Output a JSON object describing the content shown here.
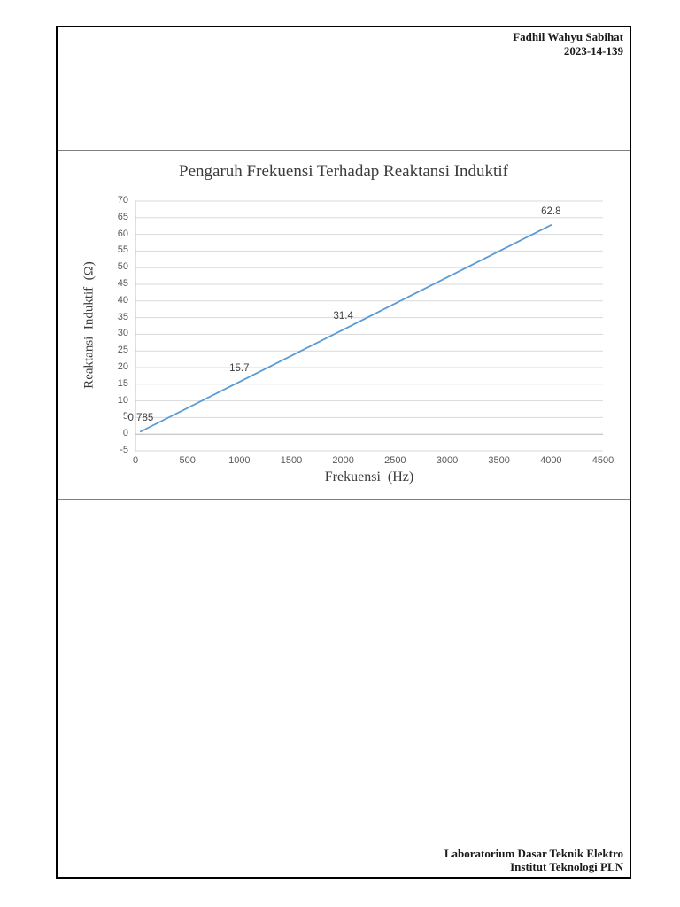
{
  "page": {
    "header": {
      "name": "Fadhil Wahyu Sabihat",
      "student_id": "2023-14-139"
    },
    "footer": {
      "line1": "Laboratorium Dasar Teknik Elektro",
      "line2": "Institut Teknologi PLN"
    }
  },
  "chart_data": {
    "type": "line",
    "title": "Pengaruh Frekuensi Terhadap Reaktansi Induktif",
    "xlabel": "Frekuensi  (Hz)",
    "ylabel": "Reaktansi  Induktif  (Ω)",
    "x": [
      50,
      1000,
      2000,
      4000
    ],
    "y": [
      0.785,
      15.7,
      31.4,
      62.8
    ],
    "point_labels": [
      "0.785",
      "15.7",
      "31.4",
      "62.8"
    ],
    "xlim": [
      0,
      4500
    ],
    "ylim": [
      -5,
      70
    ],
    "x_ticks": [
      0,
      500,
      1000,
      1500,
      2000,
      2500,
      3000,
      3500,
      4000,
      4500
    ],
    "y_ticks": [
      -5,
      0,
      5,
      10,
      15,
      20,
      25,
      30,
      35,
      40,
      45,
      50,
      55,
      60,
      65,
      70
    ],
    "grid": "horizontal",
    "legend": "none",
    "line_color": "#5b9bd5",
    "gridline_color": "#d9d9d9",
    "axis_line_color": "#bfbfbf",
    "tick_color": "#595959",
    "label_color": "#3f3f3f"
  }
}
